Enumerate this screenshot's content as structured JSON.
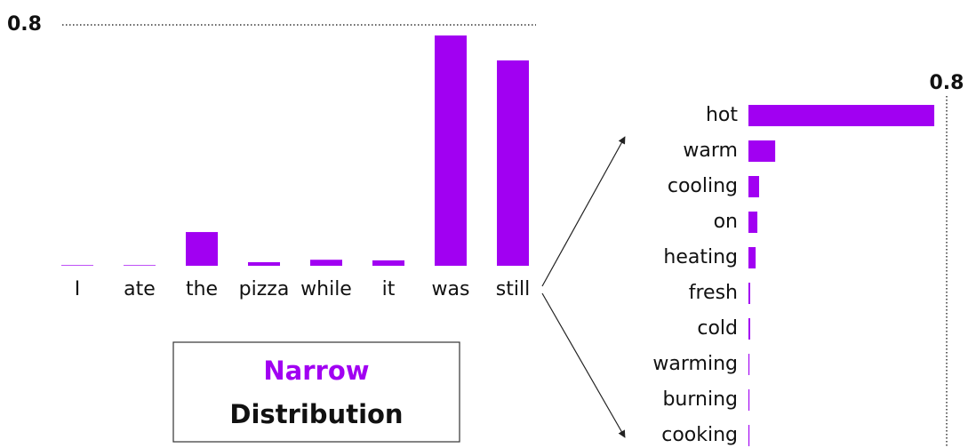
{
  "chart_data": [
    {
      "type": "bar",
      "orientation": "vertical",
      "categories": [
        "I",
        "ate",
        "the",
        "pizza",
        "while",
        "it",
        "was",
        "still"
      ],
      "values": [
        0.002,
        0.002,
        0.112,
        0.012,
        0.02,
        0.018,
        0.765,
        0.682
      ],
      "color": "#a100f2",
      "ylim": [
        0,
        0.8
      ],
      "yticks": [
        0.8
      ]
    },
    {
      "type": "bar",
      "orientation": "horizontal",
      "categories": [
        "hot",
        "warm",
        "cooling",
        "on",
        "heating",
        "fresh",
        "cold",
        "warming",
        "burning",
        "cooking"
      ],
      "values": [
        0.75,
        0.108,
        0.043,
        0.036,
        0.029,
        0.007,
        0.007,
        0.004,
        0.004,
        0.004
      ],
      "color": "#a100f2",
      "xlim": [
        0,
        0.8
      ],
      "xticks": [
        0.8
      ]
    }
  ],
  "annotation": [
    "Narrow",
    "Distribution"
  ]
}
